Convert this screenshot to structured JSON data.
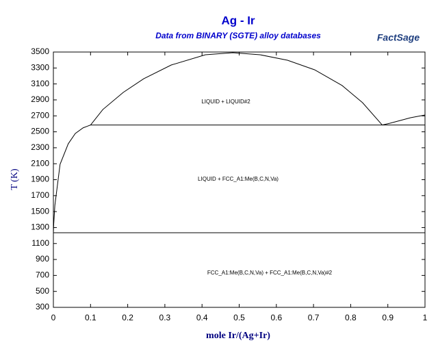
{
  "chart_data": {
    "type": "line",
    "title": "Ag - Ir",
    "subtitle": "Data from BINARY (SGTE) alloy databases",
    "logo": "FactSage",
    "x_label": "mole Ir/(Ag+Ir)",
    "y_label": "T (K)",
    "xlim": [
      0,
      1
    ],
    "ylim": [
      300,
      3500
    ],
    "xticks": [
      0,
      0.1,
      0.2,
      0.3,
      0.4,
      0.5,
      0.6,
      0.7,
      0.8,
      0.9,
      1
    ],
    "yticks": [
      300,
      500,
      700,
      900,
      1100,
      1300,
      1500,
      1700,
      1900,
      2100,
      2300,
      2500,
      2700,
      2900,
      3100,
      3300,
      3500
    ],
    "annotations": [
      "LIQUID + LIQUID#2",
      "LIQUID + FCC_A1:Me(B,C,N,Va)",
      "FCC_A1:Me(B,C,N,Va) + FCC_A1:Me(B,C,N,Va)#2"
    ],
    "series": [
      {
        "color": "#000000",
        "x": [
          0,
          0.001,
          0.004,
          0.018,
          0.04,
          0.059,
          0.08,
          0.1
        ],
        "values": [
          1235,
          1350,
          1578,
          2093,
          2350,
          2479,
          2550,
          2585
        ]
      },
      {
        "color": "#000000",
        "x": [
          0.1,
          0.133,
          0.188,
          0.243,
          0.317,
          0.409,
          0.483,
          0.556,
          0.63,
          0.703,
          0.777,
          0.832,
          0.885
        ],
        "values": [
          2585,
          2779,
          2994,
          3165,
          3337,
          3466,
          3491,
          3466,
          3397,
          3277,
          3080,
          2865,
          2585
        ]
      },
      {
        "color": "#000000",
        "x": [
          0.885,
          0.906,
          0.961,
          1
        ],
        "values": [
          2585,
          2608,
          2676,
          2711
        ]
      },
      {
        "color": "#000000",
        "x": [
          0.1,
          1
        ],
        "values": [
          2585,
          2585
        ]
      },
      {
        "color": "#000000",
        "x": [
          0,
          1
        ],
        "values": [
          1235,
          1235
        ]
      }
    ]
  }
}
